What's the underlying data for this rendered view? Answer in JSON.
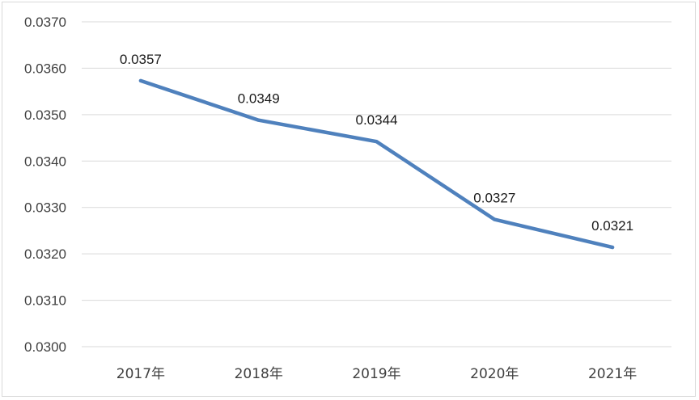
{
  "chart_data": {
    "type": "line",
    "categories": [
      "2017年",
      "2018年",
      "2019年",
      "2020年",
      "2021年"
    ],
    "series": [
      {
        "values": [
          0.03573,
          0.03488,
          0.03442,
          0.03274,
          0.03214
        ],
        "labels": [
          "0.0357",
          "0.0349",
          "0.0344",
          "0.0327",
          "0.0321"
        ],
        "color": "#4f81bd"
      }
    ],
    "ylim": [
      0.03,
      0.037
    ],
    "yticks": [
      "0.0300",
      "0.0310",
      "0.0320",
      "0.0330",
      "0.0340",
      "0.0350",
      "0.0360",
      "0.0370"
    ],
    "grid": true,
    "legend": "none"
  }
}
